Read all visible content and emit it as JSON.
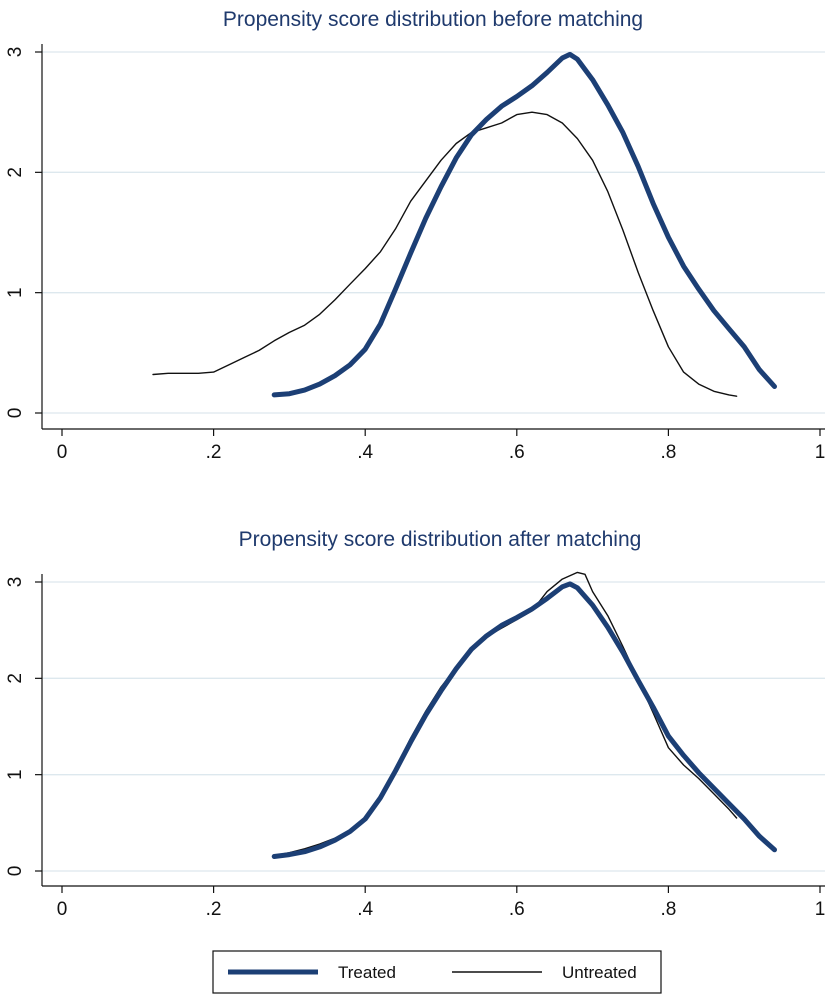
{
  "colors": {
    "treated": "#1c3f75",
    "untreated": "#111111",
    "gridline": "#dde8ee",
    "axis": "#111111",
    "background": "#ffffff"
  },
  "legend": {
    "position": "bottom",
    "items": [
      {
        "label": "Treated",
        "style": "thick navy line"
      },
      {
        "label": "Untreated",
        "style": "thin black line"
      }
    ]
  },
  "chart_data": [
    {
      "type": "line",
      "title": "Propensity score distribution before matching",
      "xlabel": "",
      "ylabel": "",
      "xlim": [
        0,
        1
      ],
      "ylim": [
        0,
        3
      ],
      "x_ticks": [
        {
          "value": 0,
          "label": "0"
        },
        {
          "value": 0.2,
          "label": ".2"
        },
        {
          "value": 0.4,
          "label": ".4"
        },
        {
          "value": 0.6,
          "label": ".6"
        },
        {
          "value": 0.8,
          "label": ".8"
        },
        {
          "value": 1,
          "label": "1"
        }
      ],
      "y_ticks": [
        {
          "value": 0,
          "label": "0"
        },
        {
          "value": 1,
          "label": "1"
        },
        {
          "value": 2,
          "label": "2"
        },
        {
          "value": 3,
          "label": "3"
        }
      ],
      "grid": "horizontal",
      "series": [
        {
          "name": "Treated",
          "x": [
            0.28,
            0.3,
            0.32,
            0.34,
            0.36,
            0.38,
            0.4,
            0.42,
            0.44,
            0.46,
            0.48,
            0.5,
            0.52,
            0.54,
            0.56,
            0.58,
            0.6,
            0.62,
            0.64,
            0.66,
            0.67,
            0.68,
            0.7,
            0.72,
            0.74,
            0.76,
            0.78,
            0.8,
            0.82,
            0.84,
            0.86,
            0.88,
            0.9,
            0.92,
            0.94
          ],
          "y": [
            0.15,
            0.16,
            0.19,
            0.24,
            0.31,
            0.4,
            0.53,
            0.74,
            1.03,
            1.33,
            1.62,
            1.88,
            2.12,
            2.31,
            2.44,
            2.55,
            2.63,
            2.72,
            2.83,
            2.95,
            2.98,
            2.94,
            2.77,
            2.56,
            2.33,
            2.05,
            1.74,
            1.46,
            1.22,
            1.03,
            0.85,
            0.7,
            0.55,
            0.36,
            0.22
          ]
        },
        {
          "name": "Untreated",
          "x": [
            0.12,
            0.14,
            0.16,
            0.18,
            0.2,
            0.22,
            0.24,
            0.26,
            0.28,
            0.3,
            0.32,
            0.34,
            0.36,
            0.38,
            0.4,
            0.42,
            0.44,
            0.46,
            0.48,
            0.5,
            0.52,
            0.54,
            0.56,
            0.58,
            0.6,
            0.62,
            0.64,
            0.66,
            0.68,
            0.7,
            0.72,
            0.74,
            0.76,
            0.78,
            0.8,
            0.82,
            0.84,
            0.86,
            0.88,
            0.89
          ],
          "y": [
            0.32,
            0.33,
            0.33,
            0.33,
            0.34,
            0.4,
            0.46,
            0.52,
            0.6,
            0.67,
            0.73,
            0.82,
            0.94,
            1.07,
            1.2,
            1.34,
            1.53,
            1.76,
            1.93,
            2.1,
            2.24,
            2.33,
            2.37,
            2.41,
            2.48,
            2.5,
            2.48,
            2.41,
            2.28,
            2.1,
            1.84,
            1.52,
            1.17,
            0.85,
            0.55,
            0.34,
            0.24,
            0.18,
            0.15,
            0.14
          ]
        }
      ]
    },
    {
      "type": "line",
      "title": "Propensity score distribution after matching",
      "xlabel": "",
      "ylabel": "",
      "xlim": [
        0,
        1
      ],
      "ylim": [
        0,
        3
      ],
      "x_ticks": [
        {
          "value": 0,
          "label": "0"
        },
        {
          "value": 0.2,
          "label": ".2"
        },
        {
          "value": 0.4,
          "label": ".4"
        },
        {
          "value": 0.6,
          "label": ".6"
        },
        {
          "value": 0.8,
          "label": ".8"
        },
        {
          "value": 1,
          "label": "1"
        }
      ],
      "y_ticks": [
        {
          "value": 0,
          "label": "0"
        },
        {
          "value": 1,
          "label": "1"
        },
        {
          "value": 2,
          "label": "2"
        },
        {
          "value": 3,
          "label": "3"
        }
      ],
      "grid": "horizontal",
      "series": [
        {
          "name": "Treated",
          "x": [
            0.28,
            0.3,
            0.32,
            0.34,
            0.36,
            0.38,
            0.4,
            0.42,
            0.44,
            0.46,
            0.48,
            0.5,
            0.52,
            0.54,
            0.56,
            0.58,
            0.6,
            0.62,
            0.64,
            0.66,
            0.67,
            0.68,
            0.7,
            0.72,
            0.74,
            0.76,
            0.78,
            0.8,
            0.82,
            0.84,
            0.86,
            0.88,
            0.9,
            0.92,
            0.94
          ],
          "y": [
            0.15,
            0.17,
            0.2,
            0.25,
            0.32,
            0.41,
            0.54,
            0.76,
            1.04,
            1.34,
            1.62,
            1.87,
            2.1,
            2.3,
            2.44,
            2.55,
            2.63,
            2.72,
            2.83,
            2.95,
            2.98,
            2.94,
            2.76,
            2.53,
            2.27,
            1.98,
            1.7,
            1.4,
            1.2,
            1.02,
            0.86,
            0.7,
            0.54,
            0.36,
            0.22
          ]
        },
        {
          "name": "Untreated",
          "x": [
            0.28,
            0.3,
            0.32,
            0.34,
            0.36,
            0.38,
            0.4,
            0.42,
            0.44,
            0.46,
            0.48,
            0.5,
            0.52,
            0.54,
            0.56,
            0.58,
            0.6,
            0.62,
            0.64,
            0.66,
            0.68,
            0.69,
            0.7,
            0.72,
            0.74,
            0.76,
            0.78,
            0.8,
            0.82,
            0.84,
            0.86,
            0.88,
            0.89
          ],
          "y": [
            0.16,
            0.19,
            0.23,
            0.28,
            0.34,
            0.42,
            0.55,
            0.75,
            1.06,
            1.38,
            1.66,
            1.91,
            2.11,
            2.29,
            2.43,
            2.52,
            2.61,
            2.7,
            2.9,
            3.03,
            3.1,
            3.08,
            2.9,
            2.65,
            2.33,
            1.99,
            1.64,
            1.28,
            1.1,
            0.96,
            0.8,
            0.64,
            0.55
          ]
        }
      ]
    }
  ]
}
